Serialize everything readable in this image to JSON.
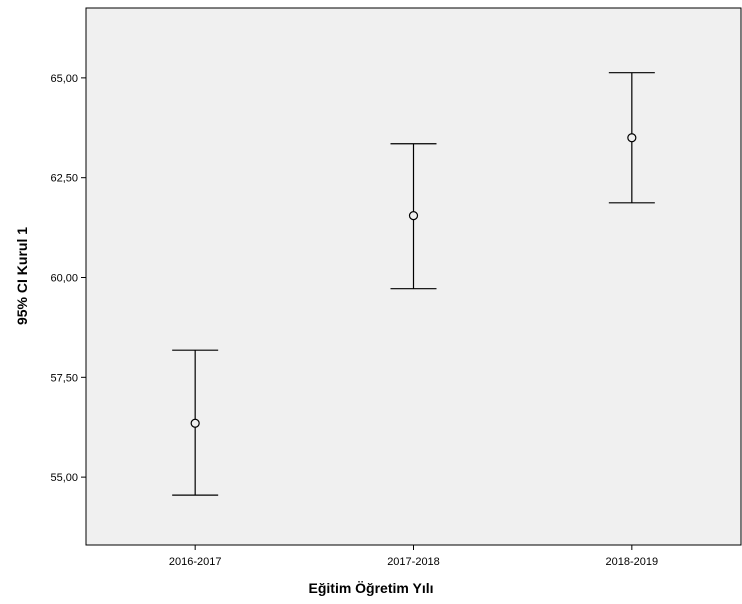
{
  "chart_data": {
    "type": "errorbar",
    "xlabel": "Eğitim Öğretim Yılı",
    "ylabel": "95% CI Kurul 1",
    "categories": [
      "2016-2017",
      "2017-2018",
      "2018-2019"
    ],
    "series": [
      {
        "mean": [
          56.35,
          61.55,
          63.5
        ],
        "ci_lower": [
          54.55,
          59.72,
          61.87
        ],
        "ci_upper": [
          58.18,
          63.35,
          65.13
        ]
      }
    ],
    "ylim": [
      53.3,
      66.75
    ],
    "yticks": [
      55.0,
      57.5,
      60.0,
      62.5,
      65.0
    ],
    "ytick_labels": [
      "55,00",
      "57,50",
      "60,00",
      "62,50",
      "65,00"
    ],
    "grid": false,
    "legend": "none",
    "colors": {
      "plot_background": "#f0f0f0",
      "marks": "#000000"
    }
  }
}
